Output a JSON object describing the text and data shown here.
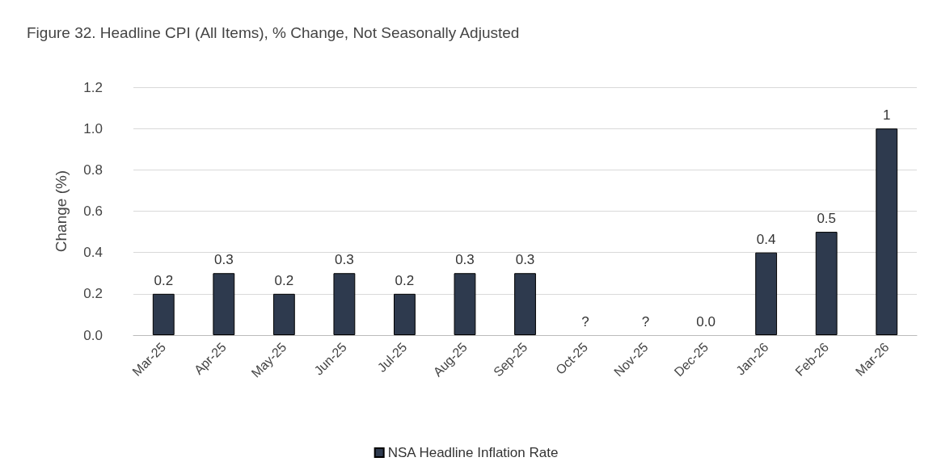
{
  "chart_data": {
    "type": "bar",
    "title": "Figure 32. Headline CPI (All Items), % Change, Not Seasonally Adjusted",
    "ylabel": "Change (%)",
    "categories": [
      "Mar-25",
      "Apr-25",
      "May-25",
      "Jun-25",
      "Jul-25",
      "Aug-25",
      "Sep-25",
      "Oct-25",
      "Nov-25",
      "Dec-25",
      "Jan-26",
      "Feb-26",
      "Mar-26"
    ],
    "series": [
      {
        "name": "NSA Headline Inflation Rate",
        "color": "#2e3a4e",
        "values": [
          0.2,
          0.3,
          0.2,
          0.3,
          0.2,
          0.3,
          0.3,
          null,
          null,
          0,
          0.4,
          0.5,
          1
        ],
        "value_labels": [
          "0.2",
          "0.3",
          "0.2",
          "0.3",
          "0.2",
          "0.3",
          "0.3",
          "?",
          "?",
          "0.0",
          "0.4",
          "0.5",
          "1"
        ]
      }
    ],
    "ylim": [
      0,
      1.2
    ],
    "yticks": [
      {
        "value": 0,
        "label": "0.0"
      },
      {
        "value": 0.2,
        "label": "0.2"
      },
      {
        "value": 0.4,
        "label": "0.4"
      },
      {
        "value": 0.6,
        "label": "0.6"
      },
      {
        "value": 0.8,
        "label": "0.8"
      },
      {
        "value": 1,
        "label": "1.0"
      },
      {
        "value": 1.2,
        "label": "1.2"
      }
    ],
    "grid": "y",
    "legend": "bottom"
  }
}
